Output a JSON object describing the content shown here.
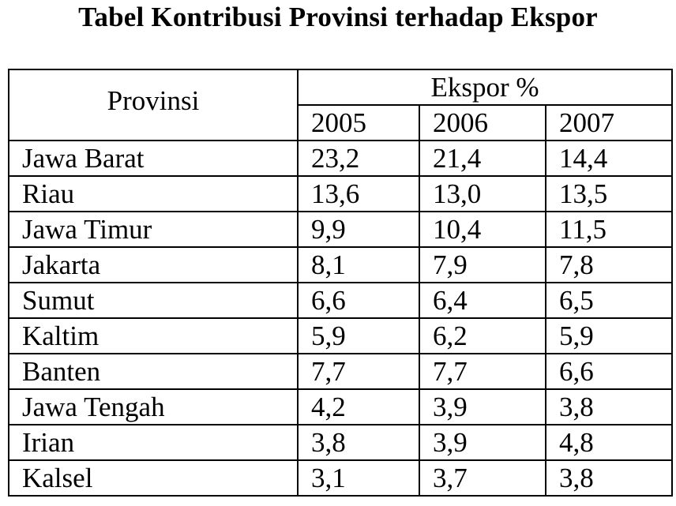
{
  "title": "Tabel Kontribusi Provinsi terhadap Ekspor",
  "table": {
    "row_header": "Provinsi",
    "group_header": "Ekspor %",
    "years": [
      "2005",
      "2006",
      "2007"
    ],
    "rows": [
      {
        "province": "Jawa Barat",
        "values": [
          "23,2",
          "21,4",
          "14,4"
        ]
      },
      {
        "province": "Riau",
        "values": [
          "13,6",
          "13,0",
          "13,5"
        ]
      },
      {
        "province": "Jawa Timur",
        "values": [
          "9,9",
          "10,4",
          "11,5"
        ]
      },
      {
        "province": "Jakarta",
        "values": [
          "8,1",
          "7,9",
          "7,8"
        ]
      },
      {
        "province": "Sumut",
        "values": [
          "6,6",
          "6,4",
          "6,5"
        ]
      },
      {
        "province": "Kaltim",
        "values": [
          "5,9",
          "6,2",
          "5,9"
        ]
      },
      {
        "province": "Banten",
        "values": [
          "7,7",
          "7,7",
          "6,6"
        ]
      },
      {
        "province": "Jawa Tengah",
        "values": [
          "4,2",
          "3,9",
          "3,8"
        ]
      },
      {
        "province": "Irian",
        "values": [
          "3,8",
          "3,9",
          "4,8"
        ]
      },
      {
        "province": "Kalsel",
        "values": [
          "3,1",
          "3,7",
          "3,8"
        ]
      }
    ]
  }
}
